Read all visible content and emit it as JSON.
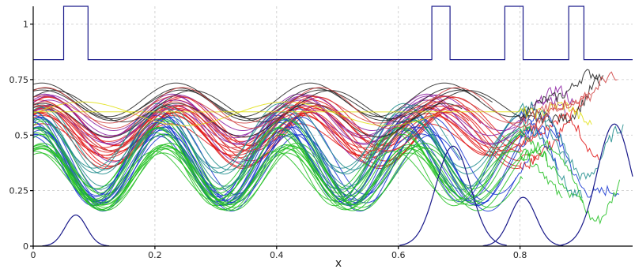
{
  "chart_data": {
    "type": "line",
    "xlabel": "x",
    "ylabel": "",
    "title": "",
    "xlim": [
      0,
      0.985
    ],
    "ylim": [
      0,
      1.08
    ],
    "x_ticks": [
      "0",
      "0.2",
      "0.4",
      "0.6",
      "0.8"
    ],
    "x_tick_values": [
      0,
      0.2,
      0.4,
      0.6,
      0.8
    ],
    "y_ticks": [
      "0",
      "0.25",
      "0.5",
      "0.75",
      "1"
    ],
    "y_tick_values": [
      0,
      0.25,
      0.5,
      0.75,
      1
    ],
    "grid": true,
    "colors": {
      "envelope": "#1a1a8a",
      "families": [
        "#e01010",
        "#1030d0",
        "#20c020",
        "#8a1aa0",
        "#1a8a8a",
        "#202020",
        "#e0e010",
        "#d04040"
      ]
    },
    "envelope": {
      "description_points_x": [
        0,
        0.05,
        0.05,
        0.09,
        0.09,
        0.655,
        0.655,
        0.685,
        0.685,
        0.775,
        0.775,
        0.805,
        0.805,
        0.88,
        0.88,
        0.905,
        0.905,
        0.985
      ],
      "description_points_y": [
        0.84,
        0.84,
        1.08,
        1.08,
        0.84,
        0.84,
        1.08,
        1.08,
        0.84,
        0.84,
        1.08,
        1.08,
        0.84,
        0.84,
        1.08,
        1.08,
        0.84,
        0.84
      ]
    },
    "bumps": [
      {
        "center": 0.07,
        "width": 0.025,
        "height": 0.14
      },
      {
        "center": 0.69,
        "width": 0.04,
        "height": 0.45
      },
      {
        "center": 0.805,
        "width": 0.03,
        "height": 0.22
      },
      {
        "center": 0.955,
        "width": 0.04,
        "height": 0.55
      }
    ],
    "series_families": [
      {
        "color": "#e01010",
        "count": 14,
        "base": 0.53,
        "amp": 0.1,
        "freq": 9.2,
        "phase": 1.1
      },
      {
        "color": "#1030d0",
        "count": 12,
        "base": 0.36,
        "amp": 0.17,
        "freq": 9.6,
        "phase": 1.5
      },
      {
        "color": "#20c020",
        "count": 16,
        "base": 0.36,
        "amp": 0.14,
        "freq": 9.9,
        "phase": 1.3
      },
      {
        "color": "#8a1aa0",
        "count": 6,
        "base": 0.55,
        "amp": 0.1,
        "freq": 9.4,
        "phase": 1.0
      },
      {
        "color": "#1a8a8a",
        "count": 6,
        "base": 0.45,
        "amp": 0.14,
        "freq": 9.7,
        "phase": 1.4
      },
      {
        "color": "#202020",
        "count": 5,
        "base": 0.6,
        "amp": 0.08,
        "freq": 9.0,
        "phase": 0.9
      },
      {
        "color": "#e0e010",
        "count": 2,
        "base": 0.64,
        "amp": 0.03,
        "freq": 6.0,
        "phase": 0.2
      },
      {
        "color": "#d04040",
        "count": 4,
        "base": 0.58,
        "amp": 0.09,
        "freq": 9.1,
        "phase": 1.0
      }
    ]
  }
}
